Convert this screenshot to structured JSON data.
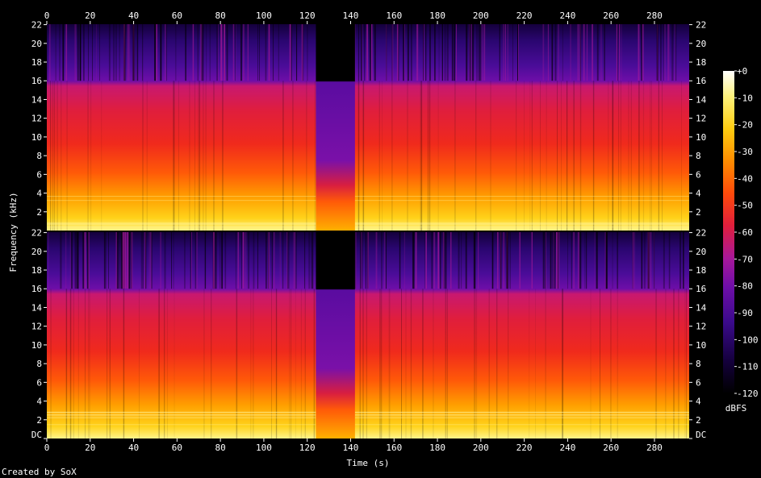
{
  "chart_data": {
    "type": "heatmap",
    "subtype": "spectrogram",
    "channels": 2,
    "xlabel": "Time (s)",
    "ylabel": "Frequency (kHz)",
    "x_ticks": [
      0,
      20,
      40,
      60,
      80,
      100,
      120,
      140,
      160,
      180,
      200,
      220,
      240,
      260,
      280
    ],
    "xlim": [
      0,
      296
    ],
    "y_ticks_top": [
      "2",
      "4",
      "6",
      "8",
      "10",
      "12",
      "14",
      "16",
      "18",
      "20",
      "22"
    ],
    "y_ticks_bottom": [
      "DC",
      "2",
      "4",
      "6",
      "8",
      "10",
      "12",
      "14",
      "16",
      "18",
      "20",
      "22"
    ],
    "ylim_khz": [
      0,
      22.05
    ],
    "colorbar": {
      "label": "dBFS",
      "ticks": [
        "+0",
        "-10",
        "-20",
        "-30",
        "-40",
        "-50",
        "-60",
        "-70",
        "-80",
        "-90",
        "-100",
        "-110",
        "-120"
      ],
      "range_db": [
        -120,
        0
      ]
    },
    "lowpass_cutoff_khz": 16,
    "quiet_section_s": [
      124,
      142
    ],
    "colors": {
      "background": "#000000",
      "palette": [
        "#000000",
        "#14003c",
        "#3a0a8c",
        "#6e0ea8",
        "#a8189a",
        "#e01e3c",
        "#ff4a0a",
        "#ff8c00",
        "#ffcc10",
        "#fff27a",
        "#ffffff"
      ]
    }
  },
  "footer": {
    "credit": "Created by SoX"
  }
}
